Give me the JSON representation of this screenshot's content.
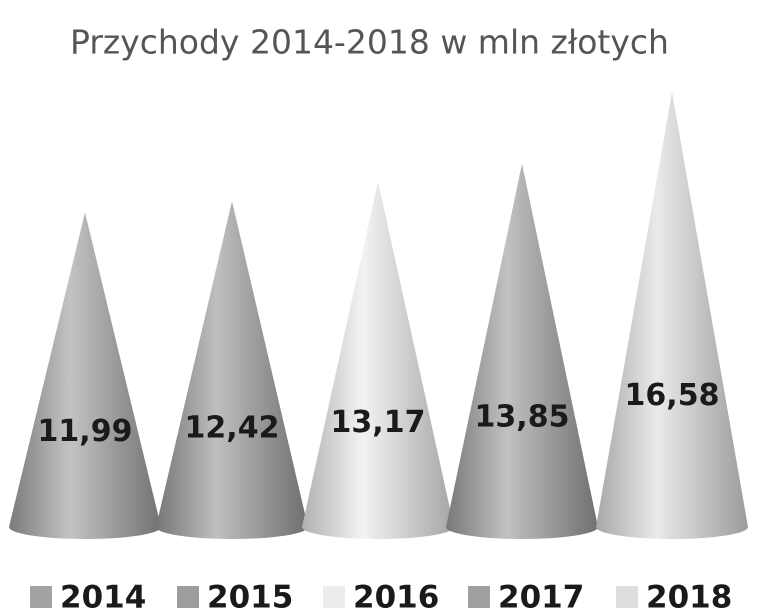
{
  "chart_data": {
    "type": "cone",
    "title": "Przychody 2014-2018 w mln złotych",
    "series": [
      {
        "name": "2014",
        "color": "#a3a3a3",
        "values": [
          11.99
        ],
        "value_labels": [
          "11,99"
        ]
      },
      {
        "name": "2015",
        "color": "#9d9d9d",
        "values": [
          12.42
        ],
        "value_labels": [
          "12,42"
        ]
      },
      {
        "name": "2016",
        "color": "#ececec",
        "values": [
          13.17
        ],
        "value_labels": [
          "13,17"
        ]
      },
      {
        "name": "2017",
        "color": "#a0a0a0",
        "values": [
          13.85
        ],
        "value_labels": [
          "13,85"
        ]
      },
      {
        "name": "2018",
        "color": "#dedede",
        "values": [
          16.58
        ],
        "value_labels": [
          "16,58"
        ]
      }
    ],
    "legend": "bottom"
  }
}
